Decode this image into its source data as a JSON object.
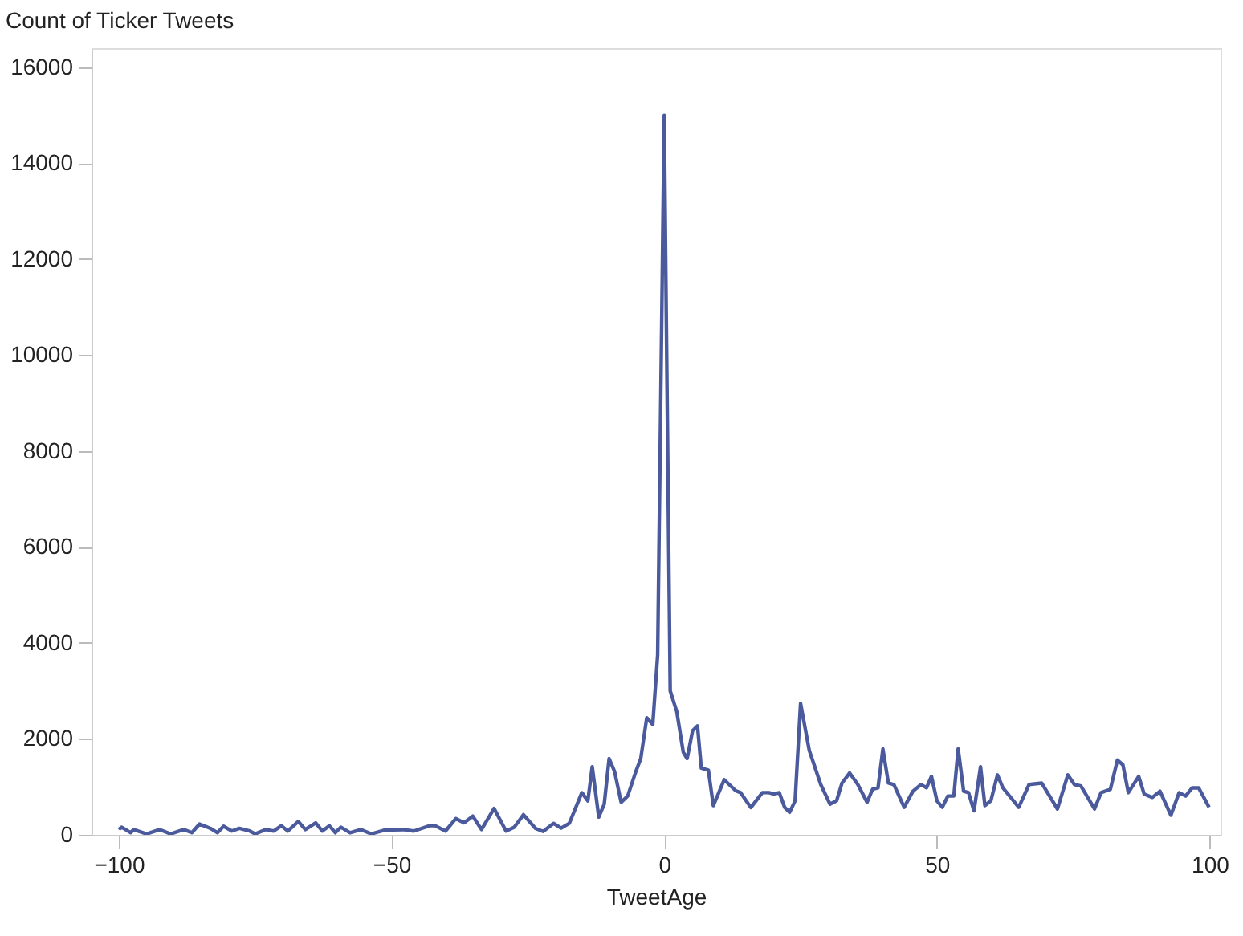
{
  "chart_data": {
    "type": "line",
    "xlabel": "TweetAge",
    "ylabel": "Count of Ticker Tweets",
    "x": [
      -100,
      -99.5,
      -97.8,
      -97.3,
      -94.9,
      -92.5,
      -90.5,
      -88.1,
      -86.6,
      -85.2,
      -83.2,
      -81.9,
      -80.8,
      -79.3,
      -77.9,
      -76,
      -75,
      -73.1,
      -71.6,
      -70.2,
      -69,
      -67.1,
      -65.8,
      -63.9,
      -62.7,
      -61.4,
      -60.3,
      -59.3,
      -57.6,
      -55.6,
      -53.7,
      -51.3,
      -47.9,
      -45.9,
      -43,
      -42,
      -40.1,
      -38.2,
      -36.7,
      -35.1,
      -33.5,
      -31.2,
      -29,
      -27.5,
      -25.8,
      -23.6,
      -22.2,
      -20.3,
      -18.9,
      -17.4,
      -15.1,
      -14,
      -13.2,
      -12,
      -11,
      -10.1,
      -9.1,
      -7.9,
      -6.7,
      -5.2,
      -4.3,
      -3.2,
      -2.1,
      -1.2,
      0,
      1.1,
      2.3,
      3.5,
      4.2,
      5.2,
      6.1,
      6.8,
      8.1,
      9,
      11,
      13.1,
      14,
      15.9,
      18,
      19.2,
      20.1,
      21.1,
      22.1,
      23,
      24,
      25,
      26.6,
      28.7,
      30.4,
      31.6,
      32.6,
      34,
      35.5,
      37.2,
      38.2,
      39.2,
      40.1,
      41.1,
      42.1,
      44,
      45.6,
      47.1,
      48.1,
      49,
      50,
      51,
      52,
      53.1,
      53.9,
      54.9,
      55.8,
      56.8,
      58,
      58.8,
      59.9,
      61.1,
      62.1,
      65,
      66.9,
      69.2,
      72.1,
      74,
      75.2,
      76.4,
      78.9,
      80.1,
      81.8,
      83.1,
      84.1,
      85.1,
      87,
      88,
      89.5,
      90.9,
      92.9,
      94.4,
      95.6,
      96.8,
      98,
      99.9
    ],
    "series": [
      {
        "color": "#4a5a9c",
        "values": [
          110,
          160,
          45,
          110,
          20,
          110,
          20,
          110,
          45,
          225,
          135,
          45,
          180,
          80,
          135,
          80,
          20,
          110,
          80,
          190,
          80,
          280,
          110,
          250,
          80,
          190,
          45,
          160,
          45,
          110,
          20,
          100,
          110,
          80,
          190,
          190,
          80,
          340,
          250,
          390,
          110,
          550,
          80,
          160,
          420,
          135,
          70,
          240,
          140,
          240,
          880,
          710,
          1420,
          370,
          640,
          1590,
          1320,
          680,
          810,
          1320,
          1590,
          2440,
          2300,
          3750,
          15000,
          3000,
          2570,
          1720,
          1590,
          2170,
          2270,
          1390,
          1350,
          610,
          1150,
          920,
          880,
          570,
          880,
          880,
          850,
          880,
          570,
          470,
          710,
          2740,
          1760,
          1050,
          640,
          710,
          1080,
          1290,
          1050,
          680,
          950,
          980,
          1790,
          1080,
          1050,
          575,
          910,
          1050,
          980,
          1220,
          710,
          575,
          810,
          810,
          1790,
          910,
          880,
          500,
          1420,
          610,
          710,
          1250,
          980,
          575,
          1050,
          1080,
          540,
          1250,
          1050,
          1020,
          540,
          880,
          950,
          1560,
          1460,
          880,
          1220,
          850,
          780,
          910,
          410,
          880,
          810,
          980,
          980,
          575
        ]
      }
    ],
    "xlim": [
      -105,
      102
    ],
    "ylim": [
      0,
      16400
    ],
    "xticks": [
      -100,
      -50,
      0,
      50,
      100
    ],
    "yticks": [
      0,
      2000,
      4000,
      6000,
      8000,
      10000,
      12000,
      14000,
      16000
    ],
    "grid": false,
    "marker": "none",
    "line_style": "solid"
  }
}
